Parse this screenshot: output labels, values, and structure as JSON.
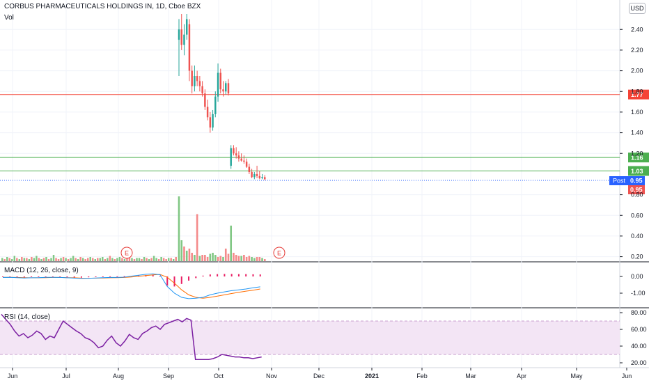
{
  "header": {
    "symbol_title": "CORBUS PHARMACEUTICALS HOLDINGS IN, 1D, Cboe BZX",
    "volume_label": "Vol",
    "currency_button": "USD"
  },
  "colors": {
    "up": "#26a69a",
    "down": "#ef5350",
    "vol_up": "#81c784",
    "vol_down": "#f48a8a",
    "hline_red": "#f44336",
    "hline_green": "#4caf50",
    "macd_line": "#2196f3",
    "signal_line": "#ff6d00",
    "histogram": "#e91e63",
    "rsi_line": "#7b1fa2",
    "rsi_band": "#f3e5f5",
    "post_tag": "#2962ff",
    "earnings": "#e53935"
  },
  "horizontal_lines": [
    {
      "price": 1.77,
      "label": "1.77",
      "color": "red"
    },
    {
      "price": 1.16,
      "label": "1.16",
      "color": "green"
    },
    {
      "price": 1.03,
      "label": "1.03",
      "color": "green"
    }
  ],
  "price_tags": {
    "post_label": "Post",
    "post_price": "0.95",
    "last_price": "0.95"
  },
  "earnings_markers": [
    {
      "date": "Aug",
      "label": "E"
    },
    {
      "date": "Nov",
      "label": "E"
    }
  ],
  "chart_data": {
    "type": "candlestick",
    "x_axis": {
      "labels": [
        "Jun",
        "Jul",
        "Aug",
        "Sep",
        "Oct",
        "Nov",
        "Dec",
        "2021",
        "Feb",
        "Mar",
        "Apr",
        "May",
        "Jun"
      ]
    },
    "price_axis": {
      "ticks": [
        "2.40",
        "2.20",
        "2.00",
        "1.80",
        "1.60",
        "1.40",
        "1.20",
        "0.80",
        "0.60",
        "0.40",
        "0.20"
      ],
      "range": [
        0.15,
        2.55
      ]
    },
    "price_series_before_sep": "no price candles drawn; volume only",
    "candles": [
      {
        "o": 2.3,
        "h": 2.5,
        "l": 1.95,
        "c": 2.4
      },
      {
        "o": 2.4,
        "h": 2.55,
        "l": 2.2,
        "c": 2.25
      },
      {
        "o": 2.25,
        "h": 2.45,
        "l": 2.15,
        "c": 2.35
      },
      {
        "o": 2.35,
        "h": 2.55,
        "l": 2.3,
        "c": 2.5
      },
      {
        "o": 2.45,
        "h": 2.5,
        "l": 1.9,
        "c": 2.0
      },
      {
        "o": 2.0,
        "h": 2.05,
        "l": 1.78,
        "c": 1.85
      },
      {
        "o": 1.85,
        "h": 2.05,
        "l": 1.8,
        "c": 1.95
      },
      {
        "o": 1.95,
        "h": 2.0,
        "l": 1.85,
        "c": 1.9
      },
      {
        "o": 1.9,
        "h": 1.95,
        "l": 1.8,
        "c": 1.85
      },
      {
        "o": 1.85,
        "h": 1.9,
        "l": 1.75,
        "c": 1.78
      },
      {
        "o": 1.78,
        "h": 1.82,
        "l": 1.62,
        "c": 1.65
      },
      {
        "o": 1.65,
        "h": 1.72,
        "l": 1.52,
        "c": 1.55
      },
      {
        "o": 1.55,
        "h": 1.6,
        "l": 1.4,
        "c": 1.45
      },
      {
        "o": 1.45,
        "h": 1.62,
        "l": 1.42,
        "c": 1.58
      },
      {
        "o": 1.58,
        "h": 1.8,
        "l": 1.55,
        "c": 1.75
      },
      {
        "o": 1.75,
        "h": 2.07,
        "l": 1.7,
        "c": 1.98
      },
      {
        "o": 1.98,
        "h": 2.02,
        "l": 1.78,
        "c": 1.82
      },
      {
        "o": 1.82,
        "h": 1.9,
        "l": 1.75,
        "c": 1.8
      },
      {
        "o": 1.8,
        "h": 1.9,
        "l": 1.77,
        "c": 1.88
      },
      {
        "o": 1.88,
        "h": 1.92,
        "l": 1.76,
        "c": 1.78
      },
      {
        "o": 1.08,
        "h": 1.28,
        "l": 1.05,
        "c": 1.25
      },
      {
        "o": 1.25,
        "h": 1.28,
        "l": 1.18,
        "c": 1.2
      },
      {
        "o": 1.2,
        "h": 1.26,
        "l": 1.15,
        "c": 1.18
      },
      {
        "o": 1.18,
        "h": 1.22,
        "l": 1.12,
        "c": 1.15
      },
      {
        "o": 1.15,
        "h": 1.2,
        "l": 1.12,
        "c": 1.13
      },
      {
        "o": 1.13,
        "h": 1.18,
        "l": 1.1,
        "c": 1.12
      },
      {
        "o": 1.12,
        "h": 1.15,
        "l": 1.06,
        "c": 1.07
      },
      {
        "o": 1.07,
        "h": 1.1,
        "l": 1.0,
        "c": 1.02
      },
      {
        "o": 1.02,
        "h": 1.05,
        "l": 0.96,
        "c": 0.97
      },
      {
        "o": 0.97,
        "h": 1.02,
        "l": 0.95,
        "c": 1.0
      },
      {
        "o": 1.0,
        "h": 1.08,
        "l": 0.96,
        "c": 0.98
      },
      {
        "o": 0.98,
        "h": 1.03,
        "l": 0.95,
        "c": 0.96
      },
      {
        "o": 0.96,
        "h": 1.0,
        "l": 0.95,
        "c": 0.97
      },
      {
        "o": 0.97,
        "h": 0.99,
        "l": 0.94,
        "c": 0.95
      }
    ],
    "volume": {
      "before_sep": [
        3,
        2,
        4,
        3,
        2,
        5,
        3,
        2,
        4,
        3,
        3,
        2,
        4,
        3,
        5,
        3,
        2,
        3,
        4,
        2,
        3,
        6,
        3,
        2,
        3,
        4,
        3,
        2,
        3,
        5,
        3,
        2,
        4,
        3,
        2,
        3,
        4,
        3,
        2,
        3,
        3,
        4,
        2,
        3,
        5,
        3,
        2,
        3,
        4,
        3,
        2,
        3,
        4,
        3,
        2,
        3,
        3,
        2,
        4,
        3,
        2,
        3,
        5,
        3,
        2,
        4,
        3,
        2,
        3,
        3,
        2,
        4
      ],
      "before_sep_direction": [
        1,
        0,
        1,
        0,
        1,
        1,
        0,
        1,
        0,
        1,
        0,
        1,
        0,
        1,
        1,
        0,
        1,
        0,
        1,
        0,
        1,
        1,
        0,
        0,
        1,
        0,
        1,
        0,
        1,
        1,
        0,
        1,
        0,
        1,
        0,
        0,
        1,
        0,
        1,
        0,
        1,
        1,
        0,
        1,
        0,
        1,
        0,
        1,
        1,
        0,
        1,
        0,
        0,
        1,
        0,
        1,
        1,
        0,
        1,
        0,
        1,
        0,
        1,
        1,
        0,
        1,
        0,
        0,
        1,
        0,
        1,
        0
      ],
      "candles": [
        62,
        20,
        14,
        10,
        12,
        8,
        6,
        45,
        5,
        6,
        6,
        4,
        7,
        8,
        6,
        4,
        5,
        4,
        12,
        7,
        34,
        8,
        6,
        5,
        5,
        6,
        4,
        5,
        4,
        3,
        4,
        4,
        3,
        2
      ],
      "candles_direction": [
        1,
        1,
        0,
        1,
        0,
        0,
        1,
        0,
        1,
        0,
        0,
        0,
        1,
        1,
        1,
        0,
        0,
        1,
        0,
        0,
        1,
        0,
        0,
        0,
        1,
        0,
        0,
        0,
        1,
        1,
        0,
        0,
        1,
        0
      ]
    },
    "macd": {
      "title": "MACD (12, 26, close, 9)",
      "ticks": [
        "0.00",
        "-1.00"
      ],
      "range": [
        -1.5,
        0.3
      ],
      "macd_line": [
        -0.06,
        -0.05,
        -0.07,
        -0.09,
        -0.08,
        -0.07,
        -0.05,
        -0.05,
        -0.06,
        -0.08,
        -0.1,
        -0.12,
        -0.11,
        -0.09,
        -0.07,
        -0.06,
        -0.06,
        -0.04,
        0.02,
        0.07,
        0.13,
        0.16,
        0.1,
        -0.6,
        -1.0,
        -1.25,
        -1.33,
        -1.3,
        -1.25,
        -1.1,
        -1.0,
        -0.92,
        -0.85,
        -0.8,
        -0.75,
        -0.68,
        -0.62
      ],
      "signal_line": [
        -0.05,
        -0.05,
        -0.06,
        -0.07,
        -0.08,
        -0.08,
        -0.07,
        -0.06,
        -0.06,
        -0.07,
        -0.08,
        -0.1,
        -0.11,
        -0.1,
        -0.09,
        -0.08,
        -0.07,
        -0.06,
        -0.03,
        0.01,
        0.05,
        0.09,
        0.12,
        -0.05,
        -0.4,
        -0.8,
        -1.1,
        -1.25,
        -1.3,
        -1.25,
        -1.18,
        -1.1,
        -1.02,
        -0.95,
        -0.88,
        -0.82,
        -0.75
      ],
      "histogram": [
        -0.04,
        -0.03,
        -0.05,
        -0.06,
        -0.04,
        -0.03,
        -0.02,
        -0.02,
        -0.03,
        -0.05,
        -0.06,
        -0.07,
        -0.05,
        -0.03,
        -0.01,
        0.01,
        0.01,
        0.02,
        0.04,
        0.06,
        0.08,
        0.08,
        0.03,
        -0.55,
        -0.6,
        -0.45,
        -0.25,
        -0.1,
        0.05,
        0.12,
        0.14,
        0.15,
        0.15,
        0.14,
        0.14,
        0.13,
        0.12
      ]
    },
    "rsi": {
      "title": "RSI (14, close)",
      "ticks": [
        "80.00",
        "60.00",
        "40.00",
        "20.00"
      ],
      "range": [
        15,
        85
      ],
      "band": [
        30,
        70
      ],
      "values": [
        78,
        72,
        66,
        58,
        52,
        55,
        50,
        53,
        58,
        55,
        48,
        52,
        50,
        60,
        70,
        66,
        62,
        58,
        55,
        50,
        48,
        44,
        38,
        40,
        47,
        52,
        44,
        40,
        46,
        54,
        50,
        48,
        55,
        58,
        62,
        64,
        60,
        66,
        68,
        70,
        72,
        69,
        73,
        71,
        24,
        24,
        24,
        24,
        25,
        27,
        30,
        29,
        28,
        27,
        27,
        26,
        26,
        25,
        26,
        27
      ]
    }
  }
}
